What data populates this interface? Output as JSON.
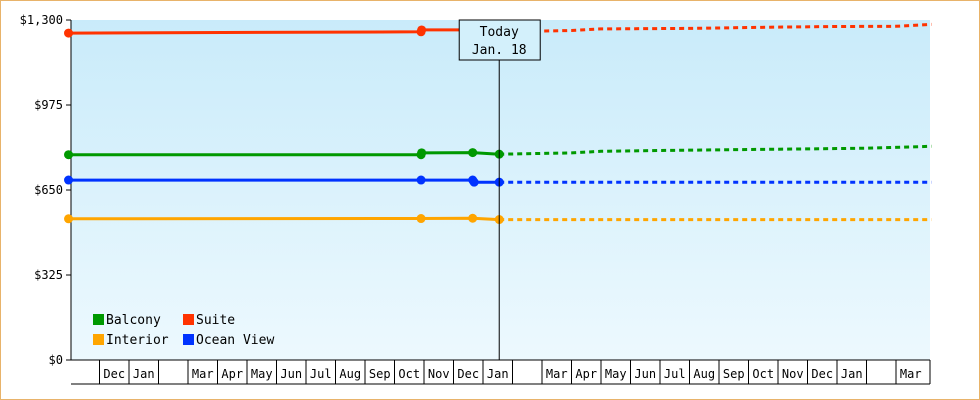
{
  "chart_data": {
    "type": "line",
    "title": "",
    "xlabel": "",
    "ylabel": "",
    "ylim": [
      0,
      1300
    ],
    "yticks": [
      "$0",
      "$325",
      "$650",
      "$975",
      "$1,300"
    ],
    "ytick_values": [
      0,
      325,
      650,
      975,
      1300
    ],
    "x_months": [
      "",
      "Dec",
      "Jan",
      "",
      "Mar",
      "Apr",
      "May",
      "Jun",
      "Jul",
      "Aug",
      "Sep",
      "Oct",
      "Nov",
      "Dec",
      "Jan",
      "",
      "Mar",
      "Apr",
      "May",
      "Jun",
      "Jul",
      "Aug",
      "Sep",
      "Oct",
      "Nov",
      "Dec",
      "Jan",
      "",
      "Mar"
    ],
    "today_marker": {
      "line1": "Today",
      "line2": "Jan. 18",
      "month_index": 14.55
    },
    "grid": false,
    "legend_placement": "bottom-left",
    "series": [
      {
        "name": "Suite",
        "color": "#ff3300",
        "history": [
          [
            -0.05,
            1250
          ],
          [
            11.9,
            1255
          ],
          [
            11.92,
            1262
          ],
          [
            13.65,
            1262
          ],
          [
            14.55,
            1255
          ]
        ],
        "forecast": [
          [
            14.55,
            1255
          ],
          [
            17,
            1260
          ],
          [
            18,
            1266
          ],
          [
            21,
            1268
          ],
          [
            24,
            1273
          ],
          [
            26,
            1275
          ],
          [
            28,
            1276
          ],
          [
            29.2,
            1283
          ]
        ]
      },
      {
        "name": "Balcony",
        "color": "#009900",
        "history": [
          [
            -0.05,
            785
          ],
          [
            11.9,
            785
          ],
          [
            11.92,
            792
          ],
          [
            13.65,
            793
          ],
          [
            14.55,
            787
          ]
        ],
        "forecast": [
          [
            14.55,
            787
          ],
          [
            17,
            792
          ],
          [
            18,
            798
          ],
          [
            20,
            801
          ],
          [
            23,
            805
          ],
          [
            25,
            807
          ],
          [
            27,
            810
          ],
          [
            29.2,
            817
          ]
        ]
      },
      {
        "name": "Ocean View",
        "color": "#0033ff",
        "history": [
          [
            -0.05,
            688
          ],
          [
            11.9,
            688
          ],
          [
            13.65,
            688
          ],
          [
            13.7,
            680
          ],
          [
            14.55,
            680
          ]
        ],
        "forecast": [
          [
            14.55,
            680
          ],
          [
            29.2,
            680
          ]
        ]
      },
      {
        "name": "Interior",
        "color": "#ffa500",
        "history": [
          [
            -0.05,
            540
          ],
          [
            11.9,
            541
          ],
          [
            13.65,
            542
          ],
          [
            14.55,
            537
          ]
        ],
        "forecast": [
          [
            14.55,
            537
          ],
          [
            29.2,
            537
          ]
        ]
      }
    ],
    "legend_rows": [
      [
        "Balcony",
        "Suite"
      ],
      [
        "Interior",
        "Ocean View"
      ]
    ]
  }
}
